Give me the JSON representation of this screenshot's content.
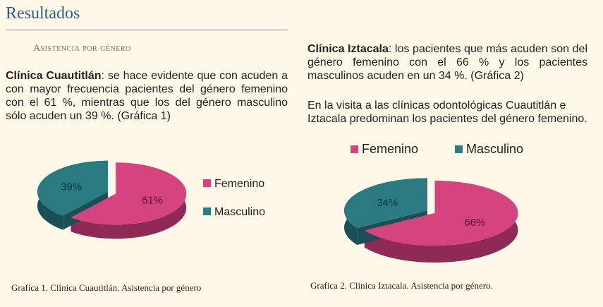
{
  "header": {
    "title": "Resultados",
    "subtitle": "Asistencia por género"
  },
  "left_paragraph": {
    "bold": "Clínica Cuautitlán",
    "text": ": se hace evidente que con acuden a con mayor frecuencia pacientes del género femenino con el 61 %, mientras que los del género masculino sólo acuden un 39 %. (Gráfica 1)"
  },
  "right_paragraph_1": {
    "bold": "Clínica Iztacala",
    "text": ": los pacientes que más acuden son del género femenino con el 66 % y los pacientes masculinos acuden en un 34 %. (Gráfica 2)"
  },
  "right_paragraph_2": "En la visita a las clínicas odontológicas Cuautitlán e Iztacala predominan los pacientes del género femenino.",
  "captions": {
    "chart1": "Grafica 1. Clínica Cuautitlán. Asistencia por género",
    "chart2": "Grafica 2. Clínica Iztacala. Asistencia por género."
  },
  "colors": {
    "femenino": "#d6447f",
    "masculino": "#2a7a82",
    "femenino_side": "#8e2a55",
    "masculino_side": "#1b4f55"
  },
  "chart_data": [
    {
      "type": "pie",
      "title": "",
      "legend_position": "right",
      "slices": [
        {
          "name": "Femenino",
          "value": 61,
          "label": "61%"
        },
        {
          "name": "Masculino",
          "value": 39,
          "label": "39%"
        }
      ]
    },
    {
      "type": "pie",
      "title": "",
      "legend_position": "top",
      "slices": [
        {
          "name": "Femenino",
          "value": 66,
          "label": "66%"
        },
        {
          "name": "Masculino",
          "value": 34,
          "label": "34%"
        }
      ]
    }
  ]
}
